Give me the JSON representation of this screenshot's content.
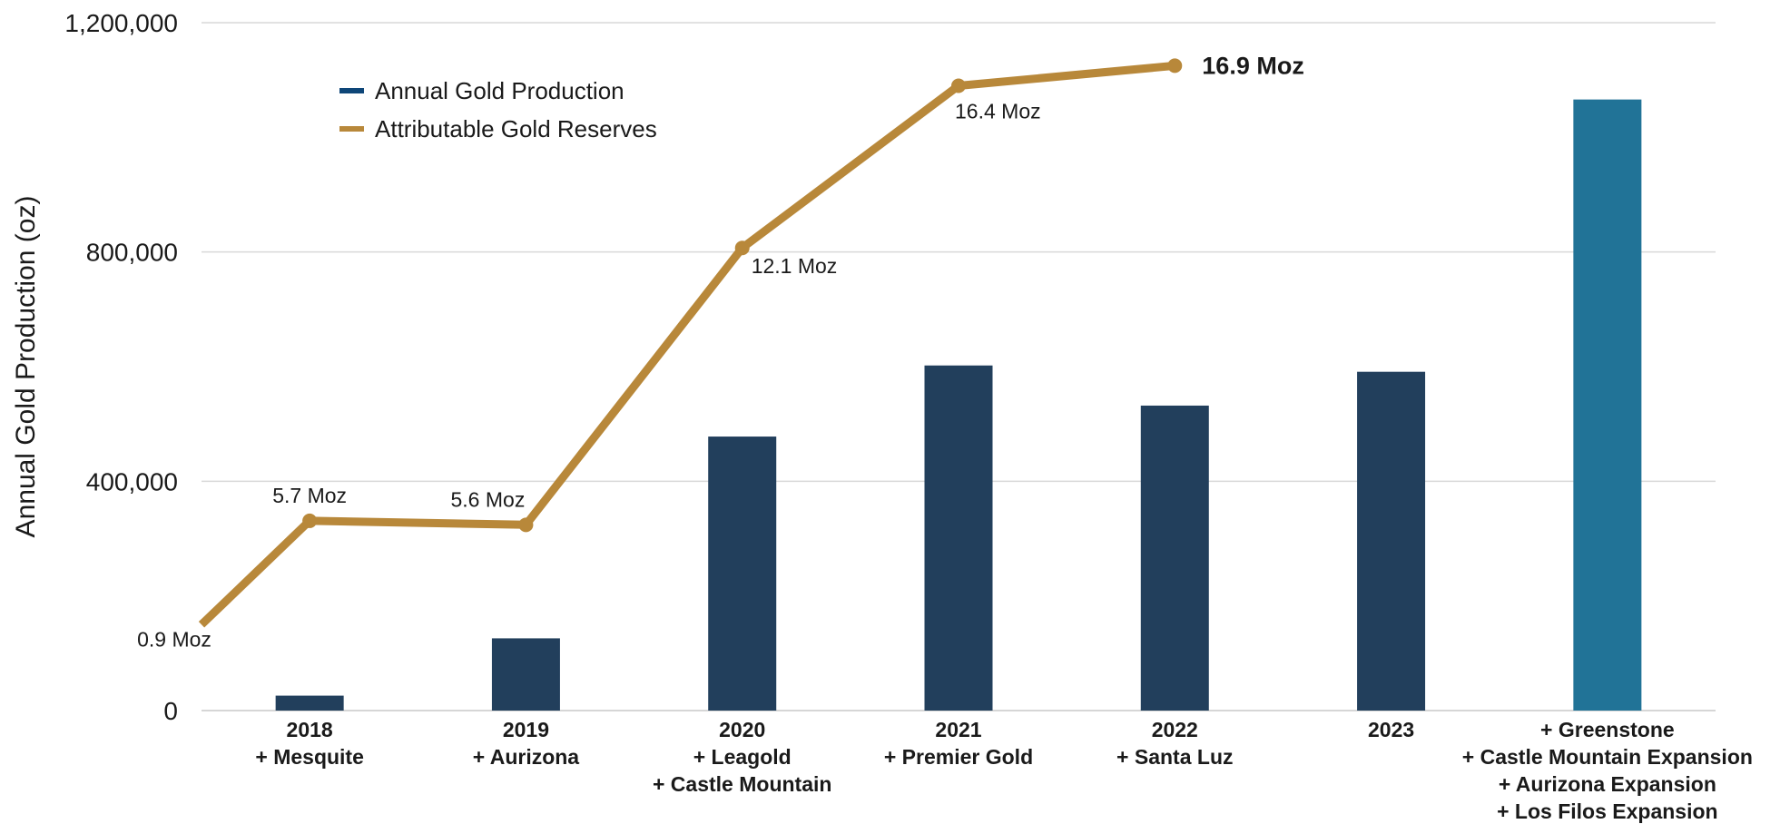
{
  "chart_data": {
    "type": "bar",
    "ylabel": "Annual Gold Production (oz)",
    "xlabel": "",
    "ylim": [
      0,
      1200000
    ],
    "yticks": [
      0,
      400000,
      800000,
      1200000
    ],
    "ytick_labels": [
      "0",
      "400,000",
      "800,000",
      "1,200,000"
    ],
    "grid": true,
    "legend_position": "top-left",
    "categories": [
      [
        "2018",
        "+ Mesquite"
      ],
      [
        "2019",
        "+ Aurizona"
      ],
      [
        "2020",
        "+ Leagold",
        "+ Castle Mountain"
      ],
      [
        "2021",
        "+ Premier Gold"
      ],
      [
        "2022",
        "+ Santa Luz"
      ],
      [
        "2023"
      ],
      [
        "+ Greenstone",
        "+ Castle Mountain Expansion",
        "+ Aurizona Expansion",
        "+ Los Filos Expansion"
      ]
    ],
    "series": [
      {
        "name": "Annual Gold Production",
        "type": "bar",
        "values": [
          26000,
          126000,
          478000,
          602000,
          532000,
          591000,
          1066000
        ],
        "colors": [
          "#223f5c",
          "#223f5c",
          "#223f5c",
          "#223f5c",
          "#223f5c",
          "#223f5c",
          "#217397"
        ]
      },
      {
        "name": "Attributable Gold Reserves",
        "type": "line",
        "color": "#b8883a",
        "x": [
          -0.5,
          0,
          1,
          2,
          3,
          4
        ],
        "values": [
          150000,
          331000,
          324000,
          807000,
          1090000,
          1125000
        ],
        "labels": [
          "0.9 Moz",
          "5.7 Moz",
          "5.6 Moz",
          "12.1 Moz",
          "16.4 Moz",
          "16.9 Moz"
        ]
      }
    ],
    "legend_key_colors": [
      "#0e4678",
      "#b8883a"
    ]
  }
}
